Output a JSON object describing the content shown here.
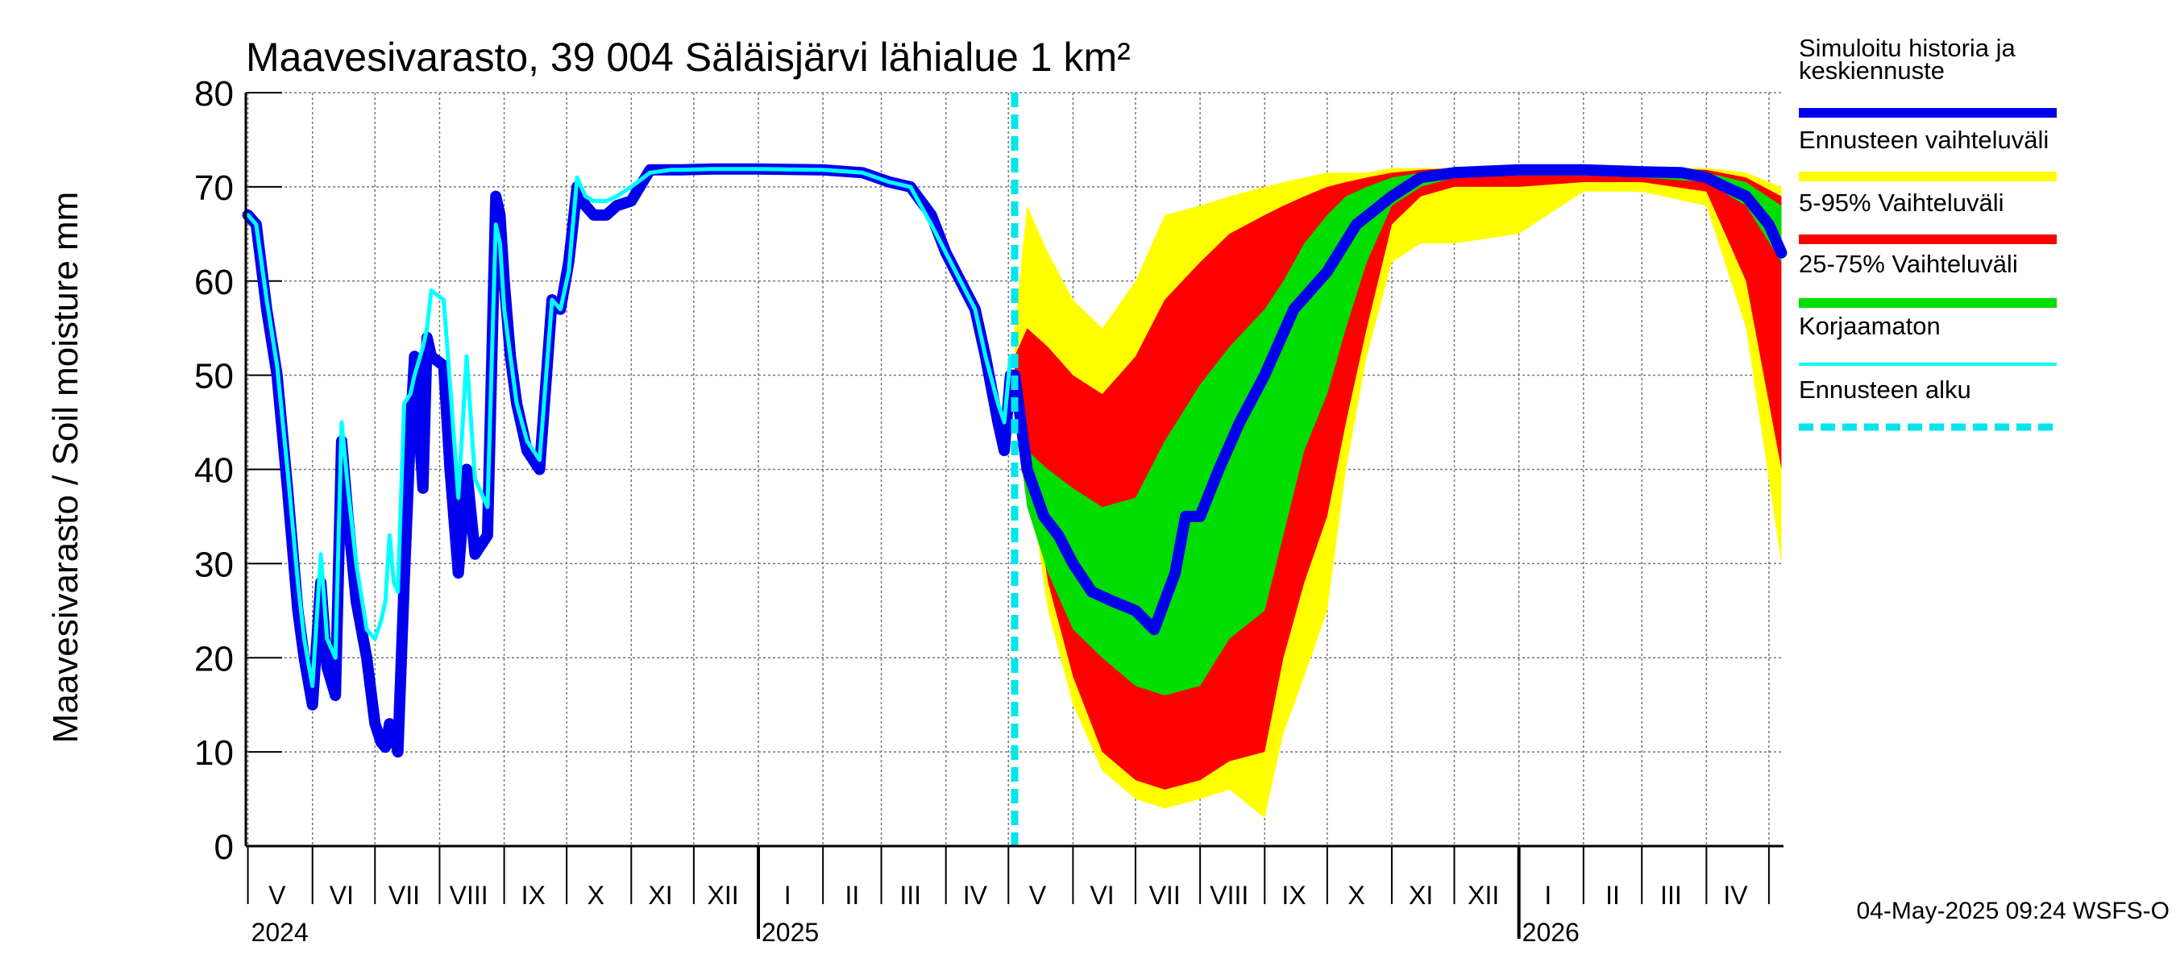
{
  "chart_data": {
    "type": "area",
    "title": "Maavesivarasto, 39 004 Säläisjärvi lähialue 1 km²",
    "ylabel": "Maavesivarasto / Soil moisture   mm",
    "ylim": [
      0,
      80
    ],
    "yticks": [
      "0",
      "10",
      "20",
      "30",
      "40",
      "50",
      "60",
      "70",
      "80"
    ],
    "grid": true,
    "legend_position": "right",
    "xlim": [
      "2024-04-30",
      "2026-05-08"
    ],
    "forecast_start": "2025-05-04",
    "month_labels": [
      {
        "label": "V",
        "date": "2024-05-15"
      },
      {
        "label": "VI",
        "date": "2024-06-15"
      },
      {
        "label": "VII",
        "date": "2024-07-15"
      },
      {
        "label": "VIII",
        "date": "2024-08-15"
      },
      {
        "label": "IX",
        "date": "2024-09-15"
      },
      {
        "label": "X",
        "date": "2024-10-15"
      },
      {
        "label": "XI",
        "date": "2024-11-15"
      },
      {
        "label": "XII",
        "date": "2024-12-15"
      },
      {
        "label": "I",
        "date": "2025-01-15"
      },
      {
        "label": "II",
        "date": "2025-02-15"
      },
      {
        "label": "III",
        "date": "2025-03-15"
      },
      {
        "label": "IV",
        "date": "2025-04-15"
      },
      {
        "label": "V",
        "date": "2025-05-15"
      },
      {
        "label": "VI",
        "date": "2025-06-15"
      },
      {
        "label": "VII",
        "date": "2025-07-15"
      },
      {
        "label": "VIII",
        "date": "2025-08-15"
      },
      {
        "label": "IX",
        "date": "2025-09-15"
      },
      {
        "label": "X",
        "date": "2025-10-15"
      },
      {
        "label": "XI",
        "date": "2025-11-15"
      },
      {
        "label": "XII",
        "date": "2025-12-15"
      },
      {
        "label": "I",
        "date": "2026-01-15"
      },
      {
        "label": "II",
        "date": "2026-02-15"
      },
      {
        "label": "III",
        "date": "2026-03-15"
      },
      {
        "label": "IV",
        "date": "2026-04-15"
      }
    ],
    "year_labels": [
      {
        "label": "2024",
        "date": "2024-05-01"
      },
      {
        "label": "2025",
        "date": "2025-01-01"
      },
      {
        "label": "2026",
        "date": "2026-01-01"
      }
    ],
    "legend": [
      {
        "label": "Simuloitu historia ja keskiennuste",
        "color": "#0000ee",
        "style": "solid-thick"
      },
      {
        "label": "Ennusteen vaihteluväli",
        "color": "#ffff00",
        "style": "solid-thick"
      },
      {
        "label": "5-95% Vaihteluväli",
        "color": "#ff0000",
        "style": "solid-thick"
      },
      {
        "label": "25-75% Vaihteluväli",
        "color": "#00dd00",
        "style": "solid-thick"
      },
      {
        "label": "Korjaamaton",
        "color": "#00ffff",
        "style": "solid"
      },
      {
        "label": "Ennusteen alku",
        "color": "#00e5ee",
        "style": "dashed"
      }
    ],
    "colors": {
      "simulated": "#0000ee",
      "uncorrected": "#00ffff",
      "range_full": "#ffff00",
      "range_5_95": "#ff0000",
      "range_25_75": "#00dd00",
      "forecast_start": "#00e5ee"
    },
    "series": [
      {
        "name": "Simuloitu historia ja keskiennuste",
        "x": [
          "2024-05-01",
          "2024-05-05",
          "2024-05-10",
          "2024-05-15",
          "2024-05-20",
          "2024-05-25",
          "2024-05-28",
          "2024-06-01",
          "2024-06-05",
          "2024-06-08",
          "2024-06-12",
          "2024-06-15",
          "2024-06-18",
          "2024-06-22",
          "2024-06-27",
          "2024-07-01",
          "2024-07-04",
          "2024-07-06",
          "2024-07-08",
          "2024-07-10",
          "2024-07-12",
          "2024-07-15",
          "2024-07-18",
          "2024-07-20",
          "2024-07-24",
          "2024-07-26",
          "2024-07-28",
          "2024-08-03",
          "2024-08-06",
          "2024-08-10",
          "2024-08-14",
          "2024-08-18",
          "2024-08-24",
          "2024-08-28",
          "2024-08-30",
          "2024-09-01",
          "2024-09-04",
          "2024-09-07",
          "2024-09-12",
          "2024-09-18",
          "2024-09-24",
          "2024-09-28",
          "2024-10-02",
          "2024-10-06",
          "2024-10-10",
          "2024-10-14",
          "2024-10-20",
          "2024-10-25",
          "2024-11-01",
          "2024-11-10",
          "2024-11-20",
          "2024-11-25",
          "2024-12-10",
          "2025-01-01",
          "2025-02-01",
          "2025-02-20",
          "2025-03-05",
          "2025-03-15",
          "2025-03-25",
          "2025-04-01",
          "2025-04-08",
          "2025-04-15",
          "2025-04-20",
          "2025-04-26",
          "2025-04-29",
          "2025-05-02",
          "2025-05-04",
          "2025-05-10",
          "2025-05-18",
          "2025-05-25",
          "2025-06-01",
          "2025-06-10",
          "2025-06-20",
          "2025-07-01",
          "2025-07-10",
          "2025-07-20",
          "2025-07-25",
          "2025-08-01",
          "2025-08-10",
          "2025-08-20",
          "2025-09-01",
          "2025-09-15",
          "2025-10-01",
          "2025-10-15",
          "2025-11-01",
          "2025-11-15",
          "2025-12-01",
          "2026-01-01",
          "2026-02-01",
          "2026-03-01",
          "2026-03-20",
          "2026-04-01",
          "2026-04-10",
          "2026-04-20",
          "2026-05-01",
          "2026-05-07"
        ],
        "values": [
          67,
          66,
          57,
          50,
          38,
          25,
          20,
          15,
          28,
          19,
          16,
          43,
          35,
          26,
          20,
          13,
          11,
          10.5,
          13,
          12,
          10,
          28,
          44,
          52,
          38,
          54,
          52,
          51,
          40,
          29,
          40,
          31,
          33,
          69,
          67,
          60,
          52,
          47,
          42,
          40,
          58,
          57,
          62,
          70,
          68,
          67,
          67,
          68,
          68.5,
          71.8,
          71.8,
          71.8,
          71.9,
          71.9,
          71.8,
          71.5,
          70.5,
          70,
          67,
          63,
          60,
          57,
          52,
          45,
          42,
          50,
          50,
          40,
          35,
          33,
          30,
          27,
          26,
          25,
          23,
          29,
          35,
          35,
          40,
          45,
          50,
          57,
          61,
          66,
          69,
          71,
          71.5,
          71.8,
          71.8,
          71.6,
          71.5,
          71,
          70,
          69,
          66,
          63
        ]
      },
      {
        "name": "Korjaamaton",
        "x": [
          "2024-05-01",
          "2024-05-05",
          "2024-05-10",
          "2024-05-15",
          "2024-05-20",
          "2024-05-25",
          "2024-05-28",
          "2024-06-01",
          "2024-06-05",
          "2024-06-08",
          "2024-06-12",
          "2024-06-15",
          "2024-06-18",
          "2024-06-22",
          "2024-06-27",
          "2024-07-01",
          "2024-07-04",
          "2024-07-06",
          "2024-07-08",
          "2024-07-10",
          "2024-07-12",
          "2024-07-15",
          "2024-07-18",
          "2024-07-20",
          "2024-07-24",
          "2024-07-26",
          "2024-07-28",
          "2024-08-03",
          "2024-08-06",
          "2024-08-10",
          "2024-08-14",
          "2024-08-18",
          "2024-08-24",
          "2024-08-28",
          "2024-08-30",
          "2024-09-01",
          "2024-09-04",
          "2024-09-07",
          "2024-09-12",
          "2024-09-18",
          "2024-09-24",
          "2024-09-28",
          "2024-10-02",
          "2024-10-06",
          "2024-10-10",
          "2024-10-14",
          "2024-10-20",
          "2024-10-25",
          "2024-11-01",
          "2024-11-10",
          "2024-11-20",
          "2024-11-25",
          "2024-12-10",
          "2025-01-01",
          "2025-02-01",
          "2025-02-20",
          "2025-03-05",
          "2025-03-15",
          "2025-03-25",
          "2025-04-01",
          "2025-04-08",
          "2025-04-15",
          "2025-04-20",
          "2025-04-26",
          "2025-04-29",
          "2025-05-02",
          "2025-05-04"
        ],
        "values": [
          67,
          66,
          58,
          51,
          40,
          28,
          22,
          17,
          31,
          22,
          20,
          45,
          38,
          30,
          23,
          22,
          24,
          26,
          33,
          28,
          27,
          47,
          48,
          50,
          53,
          55,
          59,
          58,
          49,
          37,
          52,
          39,
          36,
          66,
          64,
          57,
          52,
          47,
          43,
          41,
          58,
          57,
          61,
          71,
          69,
          68.5,
          68.5,
          69,
          70,
          71.5,
          71.8,
          71.8,
          71.9,
          71.9,
          71.8,
          71.5,
          70.5,
          70,
          66,
          63,
          60,
          57,
          52,
          47,
          45,
          52,
          52
        ]
      }
    ],
    "bands": [
      {
        "name": "Ennusteen vaihteluväli",
        "x": [
          "2025-05-04",
          "2025-05-10",
          "2025-05-20",
          "2025-06-01",
          "2025-06-15",
          "2025-07-01",
          "2025-07-15",
          "2025-08-01",
          "2025-08-15",
          "2025-09-01",
          "2025-09-10",
          "2025-09-20",
          "2025-10-01",
          "2025-10-10",
          "2025-10-20",
          "2025-11-01",
          "2025-11-15",
          "2025-12-01",
          "2026-01-01",
          "2026-02-01",
          "2026-03-01",
          "2026-04-01",
          "2026-04-20",
          "2026-05-07"
        ],
        "low": [
          48,
          40,
          25,
          15,
          8,
          5,
          4,
          5,
          6,
          3,
          12,
          18,
          25,
          40,
          52,
          62,
          64,
          64,
          65,
          69.5,
          69.5,
          68,
          55,
          30
        ],
        "high": [
          55,
          68,
          63,
          58,
          55,
          60,
          67,
          68,
          69,
          70,
          70.5,
          71,
          71.5,
          71.5,
          71.5,
          72,
          72,
          72,
          72,
          72,
          72,
          72,
          71.5,
          70
        ]
      },
      {
        "name": "5-95% Vaihteluväli",
        "x": [
          "2025-05-04",
          "2025-05-10",
          "2025-05-20",
          "2025-06-01",
          "2025-06-15",
          "2025-07-01",
          "2025-07-15",
          "2025-08-01",
          "2025-08-15",
          "2025-09-01",
          "2025-09-10",
          "2025-09-20",
          "2025-10-01",
          "2025-10-10",
          "2025-10-20",
          "2025-11-01",
          "2025-11-15",
          "2025-12-01",
          "2026-01-01",
          "2026-02-01",
          "2026-03-01",
          "2026-04-01",
          "2026-04-20",
          "2026-05-07"
        ],
        "low": [
          48,
          42,
          28,
          18,
          10,
          7,
          6,
          7,
          9,
          10,
          20,
          28,
          35,
          45,
          55,
          66,
          69,
          70,
          70,
          70.5,
          70.5,
          69.5,
          60,
          40
        ],
        "high": [
          52,
          55,
          53,
          50,
          48,
          52,
          58,
          62,
          65,
          67,
          68,
          69,
          70,
          70.5,
          71,
          71.5,
          71.8,
          72,
          72,
          72,
          72,
          71.8,
          71,
          69
        ]
      },
      {
        "name": "25-75% Vaihteluväli",
        "x": [
          "2025-05-04",
          "2025-05-10",
          "2025-05-20",
          "2025-06-01",
          "2025-06-15",
          "2025-07-01",
          "2025-07-15",
          "2025-08-01",
          "2025-08-15",
          "2025-09-01",
          "2025-09-10",
          "2025-09-20",
          "2025-10-01",
          "2025-10-10",
          "2025-10-20",
          "2025-11-01",
          "2025-11-15",
          "2025-12-01",
          "2026-01-01",
          "2026-02-01",
          "2026-03-01",
          "2026-04-01",
          "2026-04-20",
          "2026-05-07"
        ],
        "low": [
          46,
          36,
          29,
          23,
          20,
          17,
          16,
          17,
          22,
          25,
          33,
          42,
          48,
          55,
          62,
          68,
          70,
          71,
          71.2,
          71.2,
          71,
          70.5,
          68,
          62
        ],
        "high": [
          50,
          42,
          40,
          38,
          36,
          37,
          43,
          49,
          53,
          57,
          60,
          64,
          67,
          69,
          70,
          71,
          71.5,
          71.8,
          71.8,
          71.8,
          71.8,
          71.5,
          70.5,
          68
        ]
      }
    ]
  },
  "footer": {
    "timestamp": "04-May-2025 09:24 WSFS-O"
  }
}
